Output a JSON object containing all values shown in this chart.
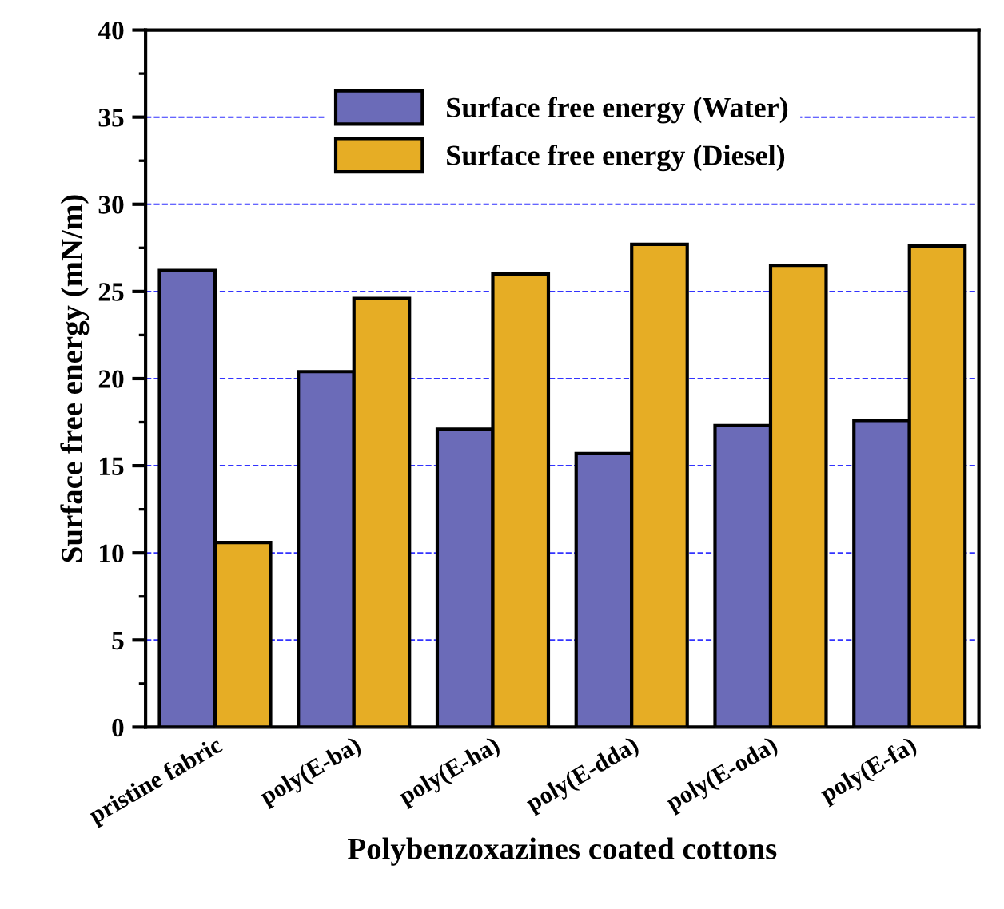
{
  "chart_data": {
    "type": "bar",
    "xlabel": "Polybenzoxazines coated cottons",
    "ylabel": "Surface free energy (mN/m)",
    "categories": [
      "pristine fabric",
      "poly(E-ba)",
      "poly(E-ha)",
      "poly(E-dda)",
      "poly(E-oda)",
      "poly(E-fa)"
    ],
    "series": [
      {
        "name": "Surface free energy (Water)",
        "color": "#6b6bb8",
        "values": [
          26.2,
          20.4,
          17.1,
          15.7,
          17.3,
          17.6
        ]
      },
      {
        "name": "Surface free energy (Diesel)",
        "color": "#e6ad25",
        "values": [
          10.6,
          24.6,
          26.0,
          27.7,
          26.5,
          27.6
        ]
      }
    ],
    "ylim": [
      0,
      40
    ],
    "yticks": [
      0,
      5,
      10,
      15,
      20,
      25,
      30,
      35,
      40
    ],
    "grid": "y",
    "legend": "top"
  }
}
